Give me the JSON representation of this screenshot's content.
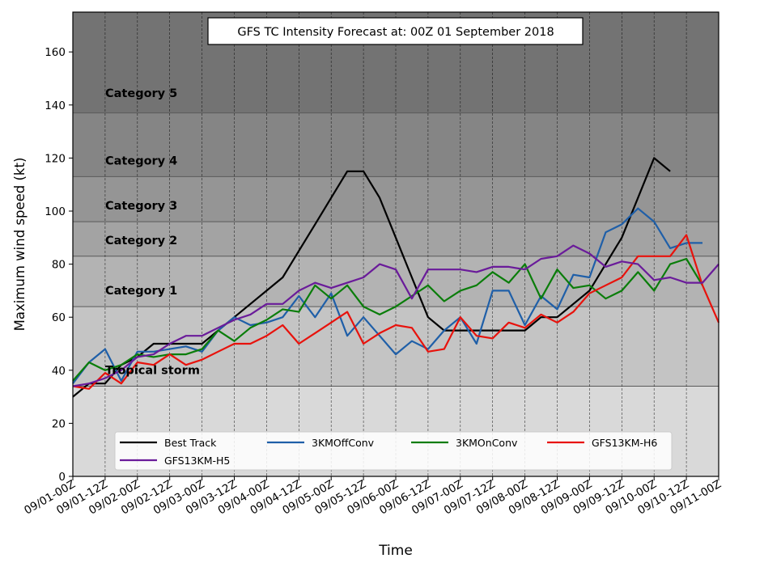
{
  "chart_data": {
    "type": "line",
    "title": "GFS TC Intensity Forecast at: 00Z 01 September 2018",
    "xlabel": "Time",
    "ylabel": "Maximum wind speed (kt)",
    "ylim": [
      0,
      175
    ],
    "yticks": [
      0,
      20,
      40,
      60,
      80,
      100,
      120,
      140,
      160
    ],
    "x_tick_labels": [
      "09/01-00Z",
      "09/01-12Z",
      "09/02-00Z",
      "09/02-12Z",
      "09/03-00Z",
      "09/03-12Z",
      "09/04-00Z",
      "09/04-12Z",
      "09/05-00Z",
      "09/05-12Z",
      "09/06-00Z",
      "09/06-12Z",
      "09/07-00Z",
      "09/07-12Z",
      "09/08-00Z",
      "09/08-12Z",
      "09/09-00Z",
      "09/09-12Z",
      "09/10-00Z",
      "09/10-12Z",
      "09/11-00Z"
    ],
    "x_step_hours": 6,
    "grid": "vertical dashed lines at each tick",
    "legend_position": "bottom-center",
    "categories_bands": [
      {
        "label": "Tropical storm",
        "min": 34,
        "max": 64,
        "color": "#c4c4c4"
      },
      {
        "label": "Category 1",
        "min": 64,
        "max": 83,
        "color": "#b3b3b3"
      },
      {
        "label": "Category 2",
        "min": 83,
        "max": 96,
        "color": "#a3a3a3"
      },
      {
        "label": "Category 3",
        "min": 96,
        "max": 113,
        "color": "#959595"
      },
      {
        "label": "Category 4",
        "min": 113,
        "max": 137,
        "color": "#858585"
      },
      {
        "label": "Category 5",
        "min": 137,
        "max": 175,
        "color": "#737373"
      }
    ],
    "below_band_color": "#d9d9d9",
    "series": [
      {
        "name": "Best Track",
        "color": "#000000",
        "values": [
          30,
          35,
          35,
          42,
          45,
          50,
          50,
          50,
          50,
          55,
          60,
          65,
          70,
          75,
          85,
          95,
          105,
          115,
          115,
          105,
          90,
          75,
          60,
          55,
          55,
          55,
          55,
          55,
          55,
          60,
          60,
          65,
          70,
          80,
          90,
          105,
          120,
          115
        ]
      },
      {
        "name": "3KMOffConv",
        "color": "#1f5fa8",
        "values": [
          35,
          43,
          48,
          36,
          47,
          47,
          48,
          49,
          47,
          55,
          60,
          57,
          58,
          60,
          68,
          60,
          69,
          53,
          60,
          53,
          46,
          51,
          48,
          55,
          60,
          50,
          70,
          70,
          57,
          68,
          63,
          76,
          75,
          92,
          95,
          101,
          96,
          86,
          88,
          88
        ]
      },
      {
        "name": "3KMOnConv",
        "color": "#0a7d0a",
        "values": [
          36,
          43,
          40,
          42,
          46,
          45,
          46,
          46,
          48,
          55,
          51,
          56,
          59,
          63,
          62,
          72,
          67,
          72,
          64,
          61,
          64,
          68,
          72,
          66,
          70,
          72,
          77,
          73,
          80,
          67,
          78,
          71,
          72,
          67,
          70,
          77,
          70,
          80,
          82,
          72
        ]
      },
      {
        "name": "GFS13KM-H6",
        "color": "#e8120c",
        "values": [
          34,
          33,
          39,
          35,
          43,
          42,
          46,
          42,
          44,
          47,
          50,
          50,
          53,
          57,
          50,
          54,
          58,
          62,
          50,
          54,
          57,
          56,
          47,
          48,
          60,
          53,
          52,
          58,
          56,
          61,
          58,
          62,
          69,
          72,
          75,
          83,
          83,
          83,
          91,
          72,
          58
        ]
      },
      {
        "name": "GFS13KM-H5",
        "color": "#6a1b9a",
        "values": [
          34,
          35,
          37,
          40,
          45,
          46,
          50,
          53,
          53,
          56,
          59,
          61,
          65,
          65,
          70,
          73,
          71,
          73,
          75,
          80,
          78,
          67,
          78,
          78,
          78,
          77,
          79,
          79,
          78,
          82,
          83,
          87,
          84,
          79,
          81,
          80,
          74,
          75,
          73,
          73,
          80
        ]
      }
    ]
  }
}
